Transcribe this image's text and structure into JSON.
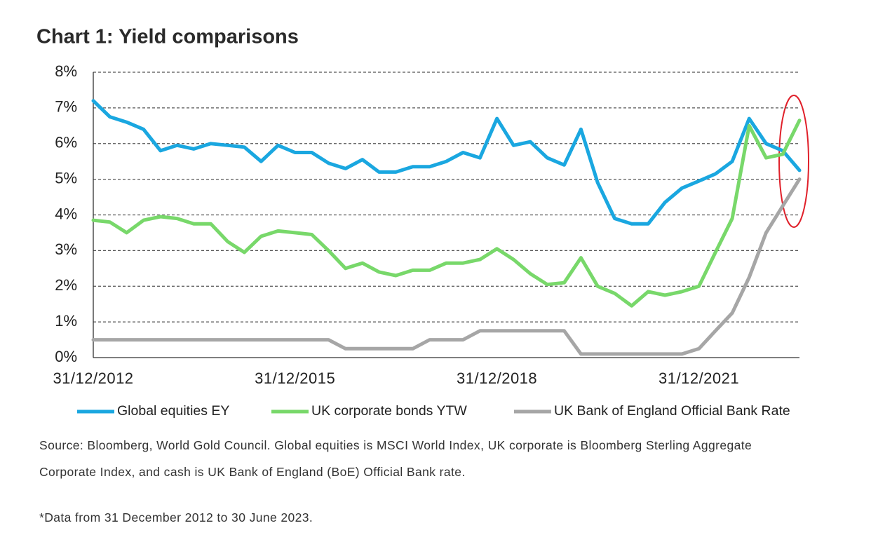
{
  "chart_data": {
    "type": "line",
    "title": "Chart 1: Yield comparisons",
    "x": [
      "31/12/2012",
      "31/03/2013",
      "30/06/2013",
      "30/09/2013",
      "31/12/2013",
      "31/03/2014",
      "30/06/2014",
      "30/09/2014",
      "31/12/2014",
      "31/03/2015",
      "30/06/2015",
      "30/09/2015",
      "31/12/2015",
      "31/03/2016",
      "30/06/2016",
      "30/09/2016",
      "31/12/2016",
      "31/03/2017",
      "30/06/2017",
      "30/09/2017",
      "31/12/2017",
      "31/03/2018",
      "30/06/2018",
      "30/09/2018",
      "31/12/2018",
      "31/03/2019",
      "30/06/2019",
      "30/09/2019",
      "31/12/2019",
      "31/03/2020",
      "30/06/2020",
      "30/09/2020",
      "31/12/2020",
      "31/03/2021",
      "30/06/2021",
      "30/09/2021",
      "31/12/2021",
      "31/03/2022",
      "30/06/2022",
      "30/09/2022",
      "31/12/2022",
      "31/03/2023",
      "30/06/2023"
    ],
    "series": [
      {
        "name": "Global equities EY",
        "color": "#1aa7e0",
        "values": [
          7.2,
          6.75,
          6.6,
          6.4,
          5.8,
          5.95,
          5.85,
          6.0,
          5.95,
          5.9,
          5.5,
          5.95,
          5.75,
          5.75,
          5.45,
          5.3,
          5.55,
          5.2,
          5.2,
          5.35,
          5.35,
          5.5,
          5.75,
          5.6,
          6.7,
          5.95,
          6.05,
          5.6,
          5.4,
          6.4,
          4.9,
          3.9,
          3.75,
          3.75,
          4.35,
          4.75,
          4.95,
          5.15,
          5.5,
          6.7,
          6.0,
          5.8,
          5.25
        ]
      },
      {
        "name": "UK corporate bonds YTW",
        "color": "#78d86a",
        "values": [
          3.85,
          3.8,
          3.5,
          3.85,
          3.95,
          3.9,
          3.75,
          3.75,
          3.25,
          2.95,
          3.4,
          3.55,
          3.5,
          3.45,
          3.0,
          2.5,
          2.65,
          2.4,
          2.3,
          2.45,
          2.45,
          2.65,
          2.65,
          2.75,
          3.05,
          2.75,
          2.35,
          2.05,
          2.1,
          2.8,
          2.0,
          1.8,
          1.45,
          1.85,
          1.75,
          1.85,
          2.0,
          2.95,
          3.9,
          6.5,
          5.6,
          5.7,
          6.65
        ]
      },
      {
        "name": "UK Bank of England Official Bank Rate",
        "color": "#a6a6a6",
        "values": [
          0.5,
          0.5,
          0.5,
          0.5,
          0.5,
          0.5,
          0.5,
          0.5,
          0.5,
          0.5,
          0.5,
          0.5,
          0.5,
          0.5,
          0.5,
          0.25,
          0.25,
          0.25,
          0.25,
          0.25,
          0.5,
          0.5,
          0.5,
          0.75,
          0.75,
          0.75,
          0.75,
          0.75,
          0.75,
          0.1,
          0.1,
          0.1,
          0.1,
          0.1,
          0.1,
          0.1,
          0.25,
          0.75,
          1.25,
          2.25,
          3.5,
          4.25,
          5.0
        ]
      }
    ],
    "xlim": [
      "31/12/2012",
      "30/06/2023"
    ],
    "xticks": [
      "31/12/2012",
      "31/12/2015",
      "31/12/2018",
      "31/12/2021"
    ],
    "ylim": [
      0,
      8
    ],
    "yticks": [
      {
        "value": 0,
        "label": "0%"
      },
      {
        "value": 1,
        "label": "1%"
      },
      {
        "value": 2,
        "label": "2%"
      },
      {
        "value": 3,
        "label": "3%"
      },
      {
        "value": 4,
        "label": "4%"
      },
      {
        "value": 5,
        "label": "5%"
      },
      {
        "value": 6,
        "label": "6%"
      },
      {
        "value": 7,
        "label": "7%"
      },
      {
        "value": 8,
        "label": "8%"
      }
    ],
    "grid": true,
    "legend": "bottom",
    "source": "Source: Bloomberg, World Gold Council. Global equities is MSCI World Index, UK corporate is Bloomberg Sterling Aggregate Corporate Index, and cash is UK Bank of England (BoE) Official Bank rate.",
    "footnote": "*Data from 31 December 2012 to 30 June 2023."
  }
}
